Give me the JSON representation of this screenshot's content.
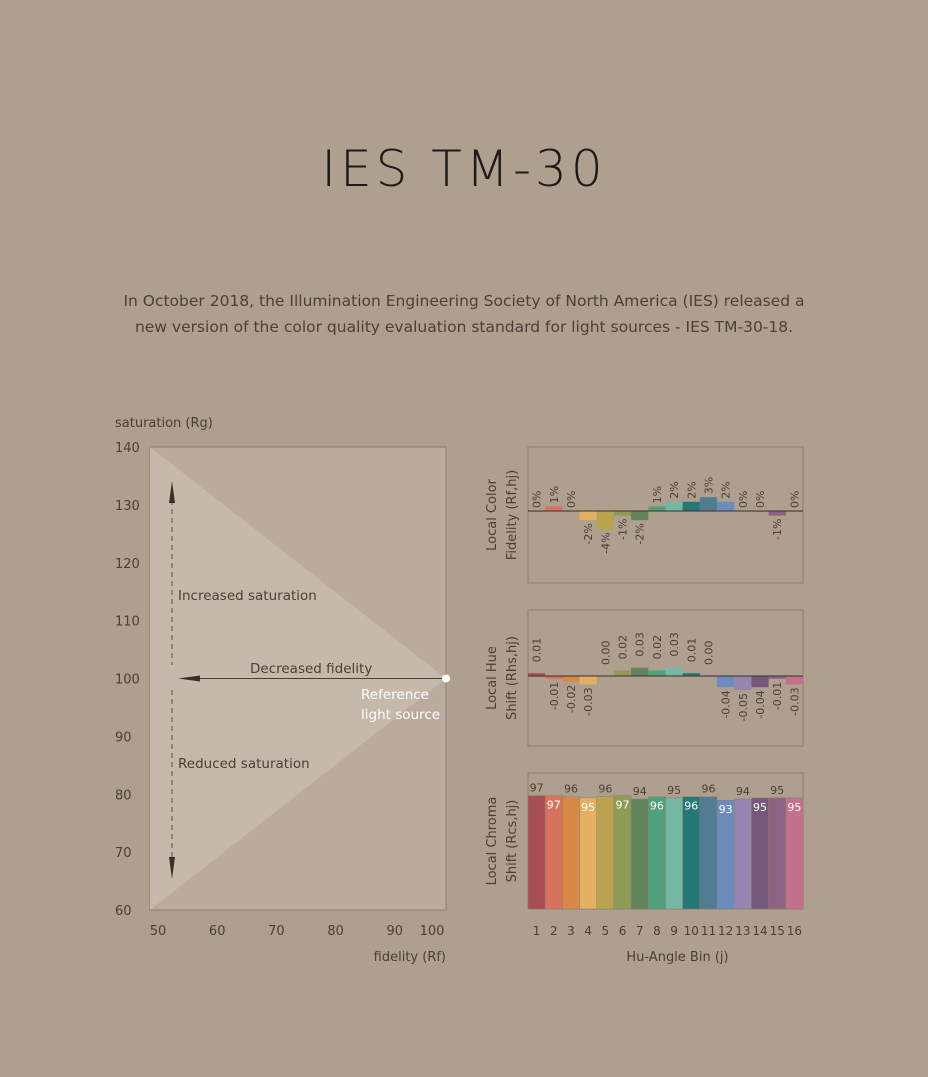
{
  "header": {
    "title": "IES TM-30",
    "intro": "In October 2018, the Illumination Engineering Society of North America (IES) released a new version of the color quality evaluation standard for light sources - IES TM-30-18."
  },
  "colors": {
    "background": "#ae9f8e",
    "bins": [
      "#a84f55",
      "#d9725c",
      "#d88945",
      "#e3b062",
      "#b9a34e",
      "#8e9b55",
      "#61845b",
      "#50a07a",
      "#76b7a4",
      "#247876",
      "#517c92",
      "#6e8bbe",
      "#9485b1",
      "#75597b",
      "#8e6282",
      "#c3718c"
    ]
  },
  "chart_data": [
    {
      "type": "scatter",
      "ylabel": "saturation (Rg)",
      "xlabel": "fidelity (Rf)",
      "xlim": [
        50,
        100
      ],
      "ylim": [
        60,
        140
      ],
      "xticks": [
        "50",
        "60",
        "70",
        "80",
        "90",
        "100"
      ],
      "yticks": [
        "140",
        "130",
        "120",
        "110",
        "100",
        "90",
        "80",
        "70",
        "60"
      ],
      "point": {
        "x": 100,
        "y": 100,
        "label_line1": "Reference",
        "label_line2": "light source"
      },
      "annotations": {
        "up": "Increased saturation",
        "left": "Decreased fidelity",
        "down": "Reduced saturation"
      }
    },
    {
      "type": "bar",
      "ylabel_line1": "Local Color",
      "ylabel_line2": "Fidelity (Rf,hj)",
      "categories": [
        "1",
        "2",
        "3",
        "4",
        "5",
        "6",
        "7",
        "8",
        "9",
        "10",
        "11",
        "12",
        "13",
        "14",
        "15",
        "16"
      ],
      "values": [
        0,
        1,
        0,
        -2,
        -4,
        -1,
        -2,
        1,
        2,
        2,
        3,
        2,
        0,
        0,
        -1,
        0
      ],
      "labels": [
        "0%",
        "1%",
        "0%",
        "-2%",
        "-4%",
        "-1%",
        "-2%",
        "1%",
        "2%",
        "2%",
        "3%",
        "2%",
        "0%",
        "0%",
        "-1%",
        "0%"
      ]
    },
    {
      "type": "bar",
      "ylabel_line1": "Local Hue",
      "ylabel_line2": "Shift (Rhs,hj)",
      "categories": [
        "1",
        "2",
        "3",
        "4",
        "5",
        "6",
        "7",
        "8",
        "9",
        "10",
        "11",
        "12",
        "13",
        "14",
        "15",
        "16"
      ],
      "values": [
        0.01,
        -0.01,
        -0.02,
        -0.03,
        0.0,
        0.02,
        0.03,
        0.02,
        0.03,
        0.01,
        0.0,
        -0.04,
        -0.05,
        -0.04,
        -0.01,
        -0.03
      ],
      "labels": [
        "0.01",
        "-0.01",
        "-0.02",
        "-0.03",
        "0.00",
        "0.02",
        "0.03",
        "0.02",
        "0.03",
        "0.01",
        "0.00",
        "-0.04",
        "-0.05",
        "-0.04",
        "-0.01",
        "-0.03"
      ]
    },
    {
      "type": "bar",
      "ylabel_line1": "Local Chroma",
      "ylabel_line2": "Shift (Rcs,hj)",
      "xlabel": "Hu-Angle Bin (j)",
      "categories": [
        "1",
        "2",
        "3",
        "4",
        "5",
        "6",
        "7",
        "8",
        "9",
        "10",
        "11",
        "12",
        "13",
        "14",
        "15",
        "16"
      ],
      "values": [
        97,
        97,
        96,
        95,
        96,
        97,
        94,
        96,
        95,
        96,
        96,
        93,
        94,
        95,
        95,
        95
      ],
      "labels": [
        "97",
        "97",
        "96",
        "95",
        "96",
        "97",
        "94",
        "96",
        "95",
        "96",
        "96",
        "93",
        "94",
        "95",
        "95",
        "95"
      ]
    }
  ]
}
